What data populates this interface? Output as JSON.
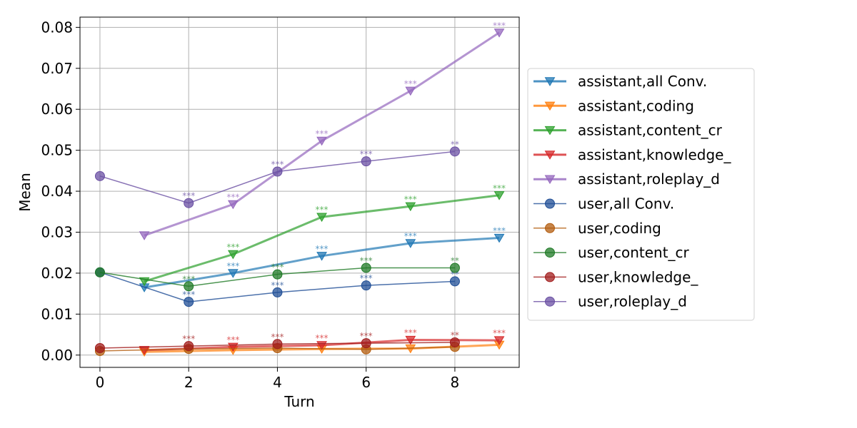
{
  "chart_data": {
    "type": "line",
    "xlabel": "Turn",
    "ylabel": "Mean",
    "xlim": [
      -0.45,
      9.45
    ],
    "ylim": [
      -0.003,
      0.0825
    ],
    "xticks": [
      0,
      2,
      4,
      6,
      8
    ],
    "yticks": [
      0.0,
      0.01,
      0.02,
      0.03,
      0.04,
      0.05,
      0.06,
      0.07,
      0.08
    ],
    "ytick_labels": [
      "0.00",
      "0.01",
      "0.02",
      "0.03",
      "0.04",
      "0.05",
      "0.06",
      "0.07",
      "0.08"
    ],
    "grid": true,
    "legend_position": "center-right outside",
    "series": [
      {
        "name": "assistant,all Conv.",
        "role": "assistant",
        "color": "#1f77b4",
        "marker": "triangle-down",
        "x": [
          1,
          3,
          5,
          7,
          9
        ],
        "y": [
          0.0165,
          0.02,
          0.0242,
          0.0273,
          0.0286
        ],
        "sig": [
          "",
          "***",
          "***",
          "***",
          "***"
        ]
      },
      {
        "name": "assistant,coding",
        "role": "assistant",
        "color": "#ff7f0e",
        "marker": "triangle-down",
        "x": [
          1,
          3,
          5,
          7,
          9
        ],
        "y": [
          0.0008,
          0.0012,
          0.0015,
          0.0016,
          0.0025
        ],
        "sig": [
          "",
          "",
          "",
          "",
          ""
        ]
      },
      {
        "name": "assistant,content_cr",
        "role": "assistant",
        "color": "#2ca02c",
        "marker": "triangle-down",
        "x": [
          1,
          3,
          5,
          7,
          9
        ],
        "y": [
          0.018,
          0.0246,
          0.0337,
          0.0363,
          0.039
        ],
        "sig": [
          "",
          "***",
          "***",
          "***",
          "***"
        ]
      },
      {
        "name": "assistant,knowledge_",
        "role": "assistant",
        "color": "#d62728",
        "marker": "triangle-down",
        "x": [
          1,
          3,
          5,
          7,
          9
        ],
        "y": [
          0.0012,
          0.002,
          0.0024,
          0.0037,
          0.0036
        ],
        "sig": [
          "",
          "***",
          "***",
          "***",
          "***"
        ]
      },
      {
        "name": "assistant,roleplay_d",
        "role": "assistant",
        "color": "#9467bd",
        "marker": "triangle-down",
        "x": [
          1,
          3,
          5,
          7,
          9
        ],
        "y": [
          0.0292,
          0.0368,
          0.0523,
          0.0645,
          0.0787
        ],
        "sig": [
          "",
          "***",
          "***",
          "***",
          "***"
        ]
      },
      {
        "name": "user,all Conv.",
        "role": "user",
        "color": "#1f4e96",
        "marker": "circle",
        "x": [
          0,
          2,
          4,
          6,
          8
        ],
        "y": [
          0.0202,
          0.013,
          0.0153,
          0.017,
          0.018
        ],
        "sig": [
          "",
          "***",
          "***",
          "***",
          "**"
        ]
      },
      {
        "name": "user,coding",
        "role": "user",
        "color": "#b35c0e",
        "marker": "circle",
        "x": [
          0,
          2,
          4,
          6,
          8
        ],
        "y": [
          0.001,
          0.0015,
          0.0017,
          0.0014,
          0.002
        ],
        "sig": [
          "",
          "",
          "",
          "",
          ""
        ]
      },
      {
        "name": "user,content_cr",
        "role": "user",
        "color": "#1f7a26",
        "marker": "circle",
        "x": [
          0,
          2,
          4,
          6,
          8
        ],
        "y": [
          0.0202,
          0.0168,
          0.0197,
          0.0213,
          0.0213
        ],
        "sig": [
          "",
          "***",
          "***",
          "***",
          "**"
        ]
      },
      {
        "name": "user,knowledge_",
        "role": "user",
        "color": "#a11c1c",
        "marker": "circle",
        "x": [
          0,
          2,
          4,
          6,
          8
        ],
        "y": [
          0.0017,
          0.0022,
          0.0027,
          0.0029,
          0.0031
        ],
        "sig": [
          "",
          "***",
          "***",
          "***",
          "**"
        ]
      },
      {
        "name": "user,roleplay_d",
        "role": "user",
        "color": "#6a4fa3",
        "marker": "circle",
        "x": [
          0,
          2,
          4,
          6,
          8
        ],
        "y": [
          0.0437,
          0.0371,
          0.0448,
          0.0473,
          0.0497
        ],
        "sig": [
          "",
          "***",
          "***",
          "***",
          "**"
        ]
      }
    ]
  }
}
